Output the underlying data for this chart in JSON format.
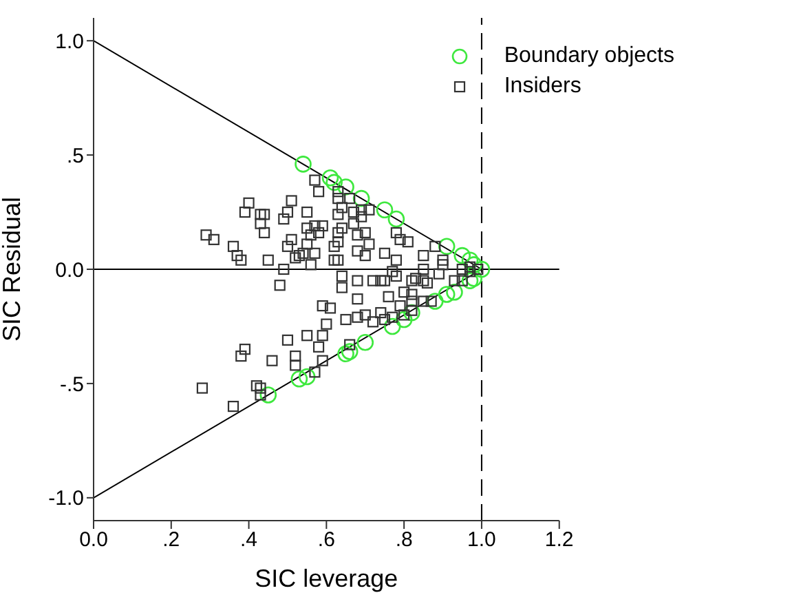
{
  "chart_data": {
    "type": "scatter",
    "xlabel": "SIC leverage",
    "ylabel": "SIC Residual",
    "xlim": [
      0,
      1.2
    ],
    "ylim": [
      -1.1,
      1.1
    ],
    "xticks": [
      {
        "value": 0,
        "label": "0.0"
      },
      {
        "value": 0.2,
        "label": ".2"
      },
      {
        "value": 0.4,
        "label": ".4"
      },
      {
        "value": 0.6,
        "label": ".6"
      },
      {
        "value": 0.8,
        "label": ".8"
      },
      {
        "value": 1,
        "label": "1.0"
      },
      {
        "value": 1.2,
        "label": "1.2"
      }
    ],
    "yticks": [
      {
        "value": -1,
        "label": "-1.0"
      },
      {
        "value": -0.5,
        "label": "-.5"
      },
      {
        "value": 0,
        "label": "0.0"
      },
      {
        "value": 0.5,
        "label": ".5"
      },
      {
        "value": 1,
        "label": "1.0"
      }
    ],
    "grid": false,
    "legend": "top right",
    "ref_lines": [
      {
        "axis": "y",
        "value": 0,
        "color": "#000000",
        "line_style": "solid"
      },
      {
        "axis": "x",
        "value": 1,
        "color": "#000000",
        "line_style": "dashed"
      }
    ],
    "series": [
      {
        "type": "line",
        "color": "#000000",
        "x": [
          0,
          1
        ],
        "values": [
          1,
          0
        ]
      },
      {
        "type": "line",
        "color": "#000000",
        "x": [
          0,
          1
        ],
        "values": [
          -1,
          0
        ]
      },
      {
        "name": "Boundary objects",
        "color": "#3ee83e",
        "marker": "circle",
        "x": [
          0.54,
          0.61,
          0.62,
          0.65,
          0.69,
          0.75,
          0.78,
          0.91,
          0.95,
          0.97,
          0.98,
          1.0,
          0.45,
          0.53,
          0.55,
          0.65,
          0.66,
          0.7,
          0.77,
          0.8,
          0.82,
          0.88,
          0.91,
          0.93,
          0.97,
          0.98
        ],
        "values": [
          0.46,
          0.4,
          0.38,
          0.36,
          0.31,
          0.26,
          0.22,
          0.1,
          0.06,
          0.04,
          0.02,
          0.0,
          -0.55,
          -0.48,
          -0.47,
          -0.37,
          -0.36,
          -0.32,
          -0.25,
          -0.22,
          -0.19,
          -0.14,
          -0.11,
          -0.1,
          -0.05,
          -0.04
        ]
      },
      {
        "name": "Insiders",
        "color": "#333333",
        "marker": "square",
        "x": [
          0.57,
          0.58,
          0.4,
          0.39,
          0.51,
          0.5,
          0.49,
          0.44,
          0.43,
          0.43,
          0.44,
          0.29,
          0.31,
          0.36,
          0.37,
          0.38,
          0.45,
          0.49,
          0.51,
          0.5,
          0.55,
          0.55,
          0.56,
          0.55,
          0.54,
          0.53,
          0.52,
          0.57,
          0.56,
          0.57,
          0.58,
          0.59,
          0.63,
          0.63,
          0.64,
          0.63,
          0.64,
          0.63,
          0.63,
          0.62,
          0.62,
          0.63,
          0.64,
          0.48,
          0.66,
          0.67,
          0.69,
          0.71,
          0.67,
          0.69,
          0.68,
          0.7,
          0.71,
          0.68,
          0.7,
          0.75,
          0.78,
          0.79,
          0.81,
          0.78,
          0.85,
          0.88,
          0.9,
          0.89,
          0.97,
          0.64,
          0.68,
          0.72,
          0.74,
          0.75,
          0.77,
          0.78,
          0.82,
          0.83,
          0.85,
          0.86,
          0.85,
          0.9,
          0.93,
          0.95,
          0.97,
          0.99,
          0.95,
          0.68,
          0.76,
          0.8,
          0.82,
          0.82,
          0.85,
          0.87,
          0.65,
          0.68,
          0.7,
          0.72,
          0.74,
          0.75,
          0.77,
          0.79,
          0.8,
          0.82,
          0.66,
          0.59,
          0.61,
          0.6,
          0.59,
          0.55,
          0.5,
          0.58,
          0.59,
          0.52,
          0.52,
          0.46,
          0.39,
          0.38,
          0.28,
          0.42,
          0.43,
          0.43,
          0.36,
          0.57
        ],
        "values": [
          0.39,
          0.34,
          0.29,
          0.25,
          0.3,
          0.25,
          0.22,
          0.24,
          0.24,
          0.2,
          0.16,
          0.15,
          0.13,
          0.1,
          0.06,
          0.04,
          0.04,
          0.0,
          0.13,
          0.1,
          0.25,
          0.18,
          0.15,
          0.11,
          0.07,
          0.06,
          0.05,
          0.07,
          0.02,
          0.19,
          0.16,
          0.19,
          0.34,
          0.31,
          0.27,
          0.24,
          0.18,
          0.16,
          0.12,
          0.1,
          0.04,
          0.04,
          -0.03,
          -0.07,
          0.31,
          0.25,
          0.26,
          0.26,
          0.2,
          0.23,
          0.15,
          0.16,
          0.11,
          0.08,
          0.06,
          0.07,
          0.16,
          0.13,
          0.12,
          0.04,
          0.06,
          0.1,
          0.04,
          -0.02,
          0.01,
          -0.08,
          -0.05,
          -0.05,
          -0.05,
          -0.05,
          -0.01,
          -0.03,
          -0.05,
          -0.04,
          -0.05,
          -0.06,
          0.0,
          0.02,
          -0.05,
          0.0,
          -0.01,
          0.0,
          -0.05,
          -0.13,
          -0.12,
          -0.1,
          -0.11,
          -0.14,
          -0.14,
          -0.14,
          -0.22,
          -0.21,
          -0.2,
          -0.23,
          -0.19,
          -0.22,
          -0.21,
          -0.16,
          -0.2,
          -0.18,
          -0.33,
          -0.16,
          -0.17,
          -0.24,
          -0.29,
          -0.29,
          -0.31,
          -0.34,
          -0.4,
          -0.38,
          -0.42,
          -0.4,
          -0.35,
          -0.38,
          -0.52,
          -0.51,
          -0.52,
          -0.55,
          -0.6,
          -0.45
        ]
      }
    ]
  }
}
